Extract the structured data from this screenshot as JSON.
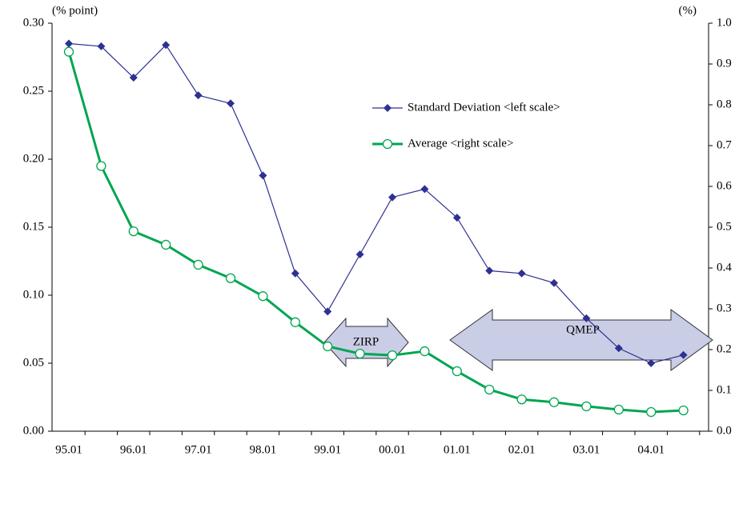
{
  "chart_data": {
    "type": "line",
    "y_unit_label": "(% point)",
    "y2_unit_label": "(%)",
    "categories": [
      "95.01",
      null,
      "96.01",
      null,
      "97.01",
      null,
      "98.01",
      null,
      "99.01",
      null,
      "00.01",
      null,
      "01.01",
      null,
      "02.01",
      null,
      "03.01",
      null,
      "04.01",
      null
    ],
    "series": [
      {
        "name": "Standard Deviation <left scale>",
        "color": "#2e3192",
        "marker": "diamond",
        "values": [
          0.285,
          0.283,
          0.26,
          0.284,
          0.247,
          0.241,
          0.188,
          0.116,
          0.088,
          0.13,
          0.172,
          0.178,
          0.157,
          0.118,
          0.116,
          0.109,
          0.083,
          0.061,
          0.05,
          0.056
        ]
      },
      {
        "name": "Average <right scale>",
        "color": "#00a651",
        "marker": "open-circle",
        "axis": "y2",
        "values": [
          0.93,
          0.65,
          0.49,
          0.457,
          0.408,
          0.375,
          0.331,
          0.267,
          0.208,
          0.19,
          0.186,
          0.196,
          0.147,
          0.102,
          0.078,
          0.071,
          0.061,
          0.053,
          0.047,
          0.051
        ]
      }
    ],
    "ylim": [
      0,
      0.3
    ],
    "yticks": [
      {
        "value": 0,
        "label": "0.00"
      },
      0.05,
      {
        "value": 0.1,
        "label": "0.10"
      },
      0.15,
      {
        "value": 0.2,
        "label": "0.20"
      },
      0.25,
      {
        "value": 0.3,
        "label": "0.30"
      }
    ],
    "y2lim": [
      0,
      1
    ],
    "y2ticks": [
      {
        "value": 0,
        "label": "0.0"
      },
      0.1,
      0.2,
      0.3,
      0.4,
      0.5,
      0.6,
      0.7,
      0.8,
      0.9,
      {
        "value": 1,
        "label": "1.0"
      }
    ],
    "legend": "upper right",
    "annotations": [
      "ZIRP",
      "QMEP"
    ]
  }
}
